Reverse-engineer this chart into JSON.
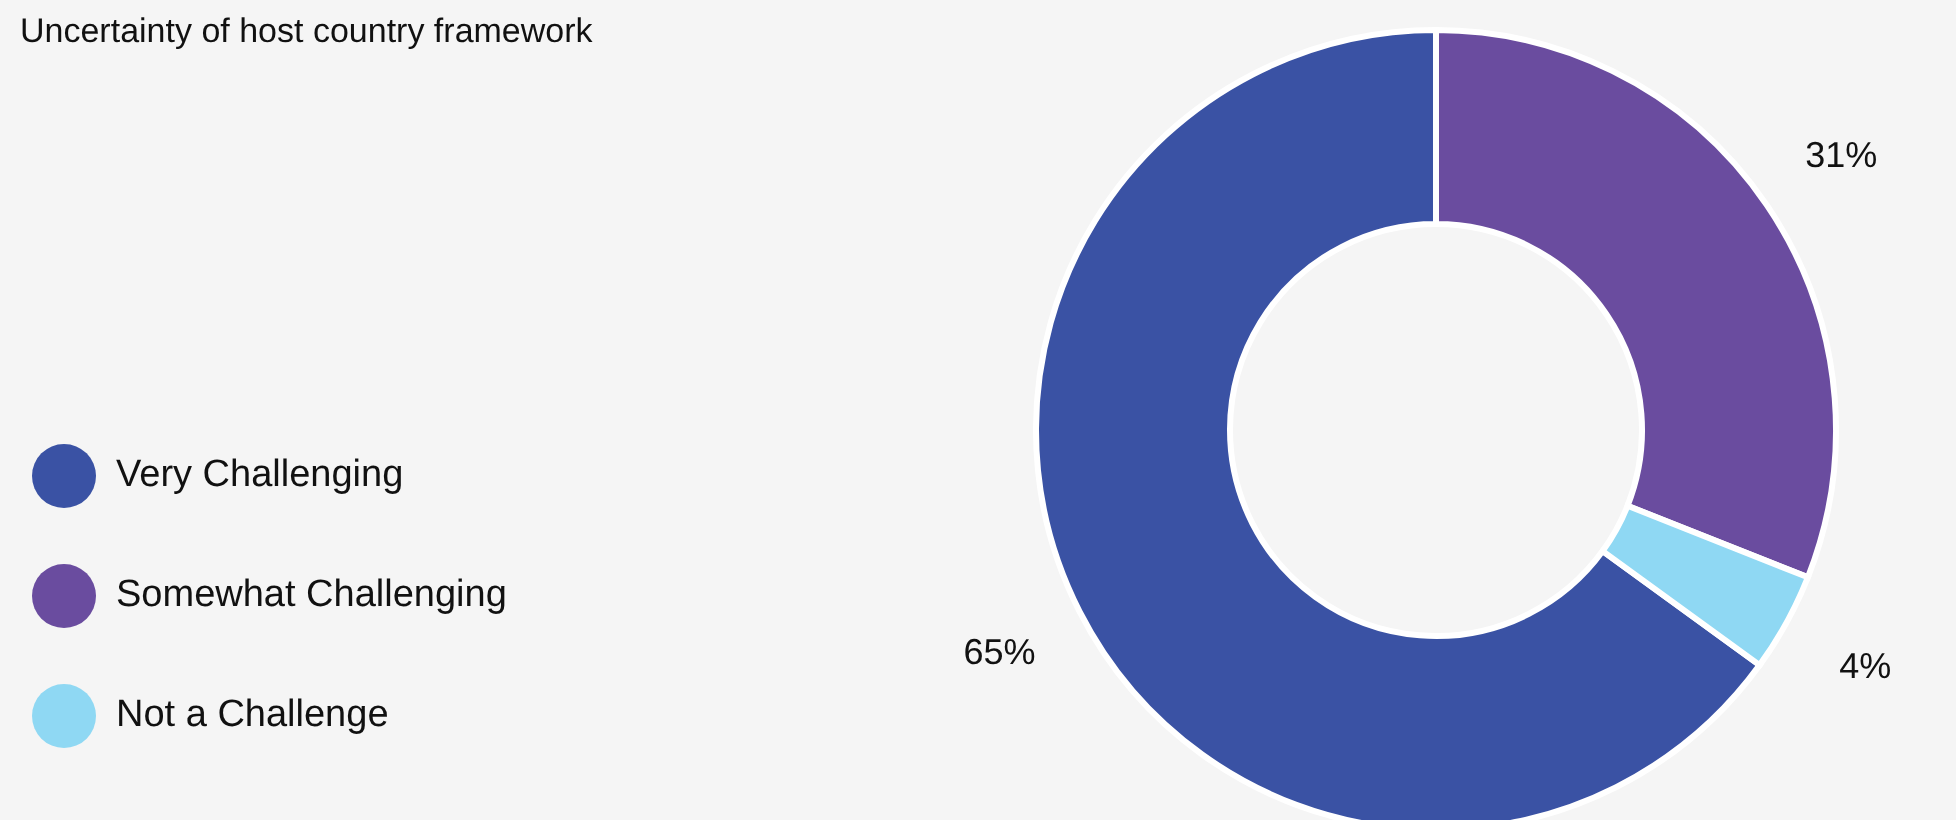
{
  "chart_data": {
    "type": "donut",
    "title": "Uncertainty of host country framework",
    "categories": [
      "Very Challenging",
      "Somewhat Challenging",
      "Not a Challenge"
    ],
    "values": [
      65,
      31,
      4
    ],
    "colors": [
      "#3a52a4",
      "#6a4c9f",
      "#8fd8f3"
    ],
    "value_labels": [
      "65%",
      "31%",
      "4%"
    ],
    "legend": "bottom left"
  }
}
